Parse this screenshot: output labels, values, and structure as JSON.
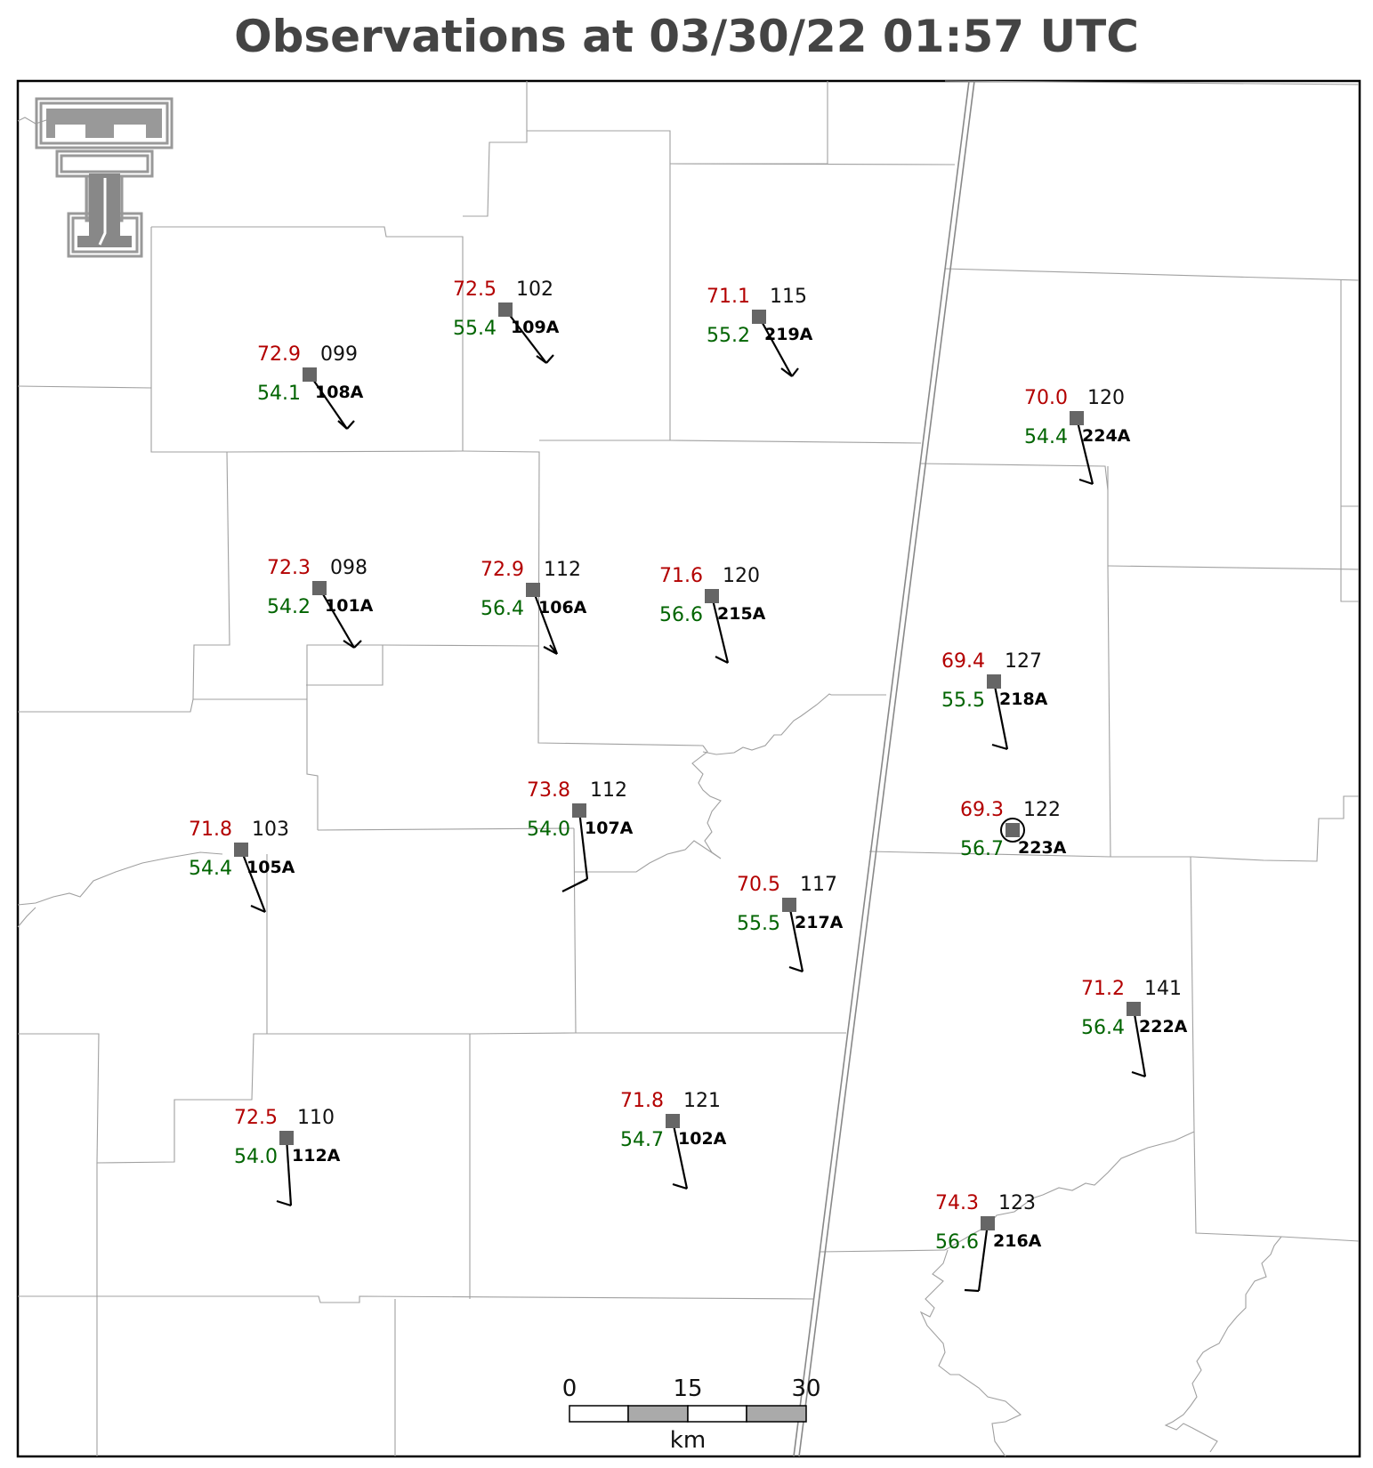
{
  "title": "Observations at 03/30/22 01:57 UTC",
  "logo": {
    "name": "double-t-logo",
    "color": "#999999"
  },
  "colors": {
    "temperature": "#b30000",
    "dewpoint": "#006400",
    "pressure": "#111111",
    "station_marker": "#666666",
    "boundary": "#9a9a9a"
  },
  "scale_bar": {
    "labels": [
      "0",
      "15",
      "30"
    ],
    "unit": "km"
  },
  "stations": [
    {
      "id": "108A",
      "temp": "72.9",
      "dew": "54.1",
      "pres": "099"
    },
    {
      "id": "109A",
      "temp": "72.5",
      "dew": "55.4",
      "pres": "102"
    },
    {
      "id": "219A",
      "temp": "71.1",
      "dew": "55.2",
      "pres": "115"
    },
    {
      "id": "224A",
      "temp": "70.0",
      "dew": "54.4",
      "pres": "120"
    },
    {
      "id": "101A",
      "temp": "72.3",
      "dew": "54.2",
      "pres": "098"
    },
    {
      "id": "106A",
      "temp": "72.9",
      "dew": "56.4",
      "pres": "112"
    },
    {
      "id": "215A",
      "temp": "71.6",
      "dew": "56.6",
      "pres": "120"
    },
    {
      "id": "218A",
      "temp": "69.4",
      "dew": "55.5",
      "pres": "127"
    },
    {
      "id": "223A",
      "temp": "69.3",
      "dew": "56.7",
      "pres": "122",
      "circled": true
    },
    {
      "id": "105A",
      "temp": "71.8",
      "dew": "54.4",
      "pres": "103"
    },
    {
      "id": "107A",
      "temp": "73.8",
      "dew": "54.0",
      "pres": "112"
    },
    {
      "id": "217A",
      "temp": "70.5",
      "dew": "55.5",
      "pres": "117"
    },
    {
      "id": "222A",
      "temp": "71.2",
      "dew": "56.4",
      "pres": "141"
    },
    {
      "id": "112A",
      "temp": "72.5",
      "dew": "54.0",
      "pres": "110"
    },
    {
      "id": "102A",
      "temp": "71.8",
      "dew": "54.7",
      "pres": "121"
    },
    {
      "id": "216A",
      "temp": "74.3",
      "dew": "56.6",
      "pres": "123"
    }
  ]
}
